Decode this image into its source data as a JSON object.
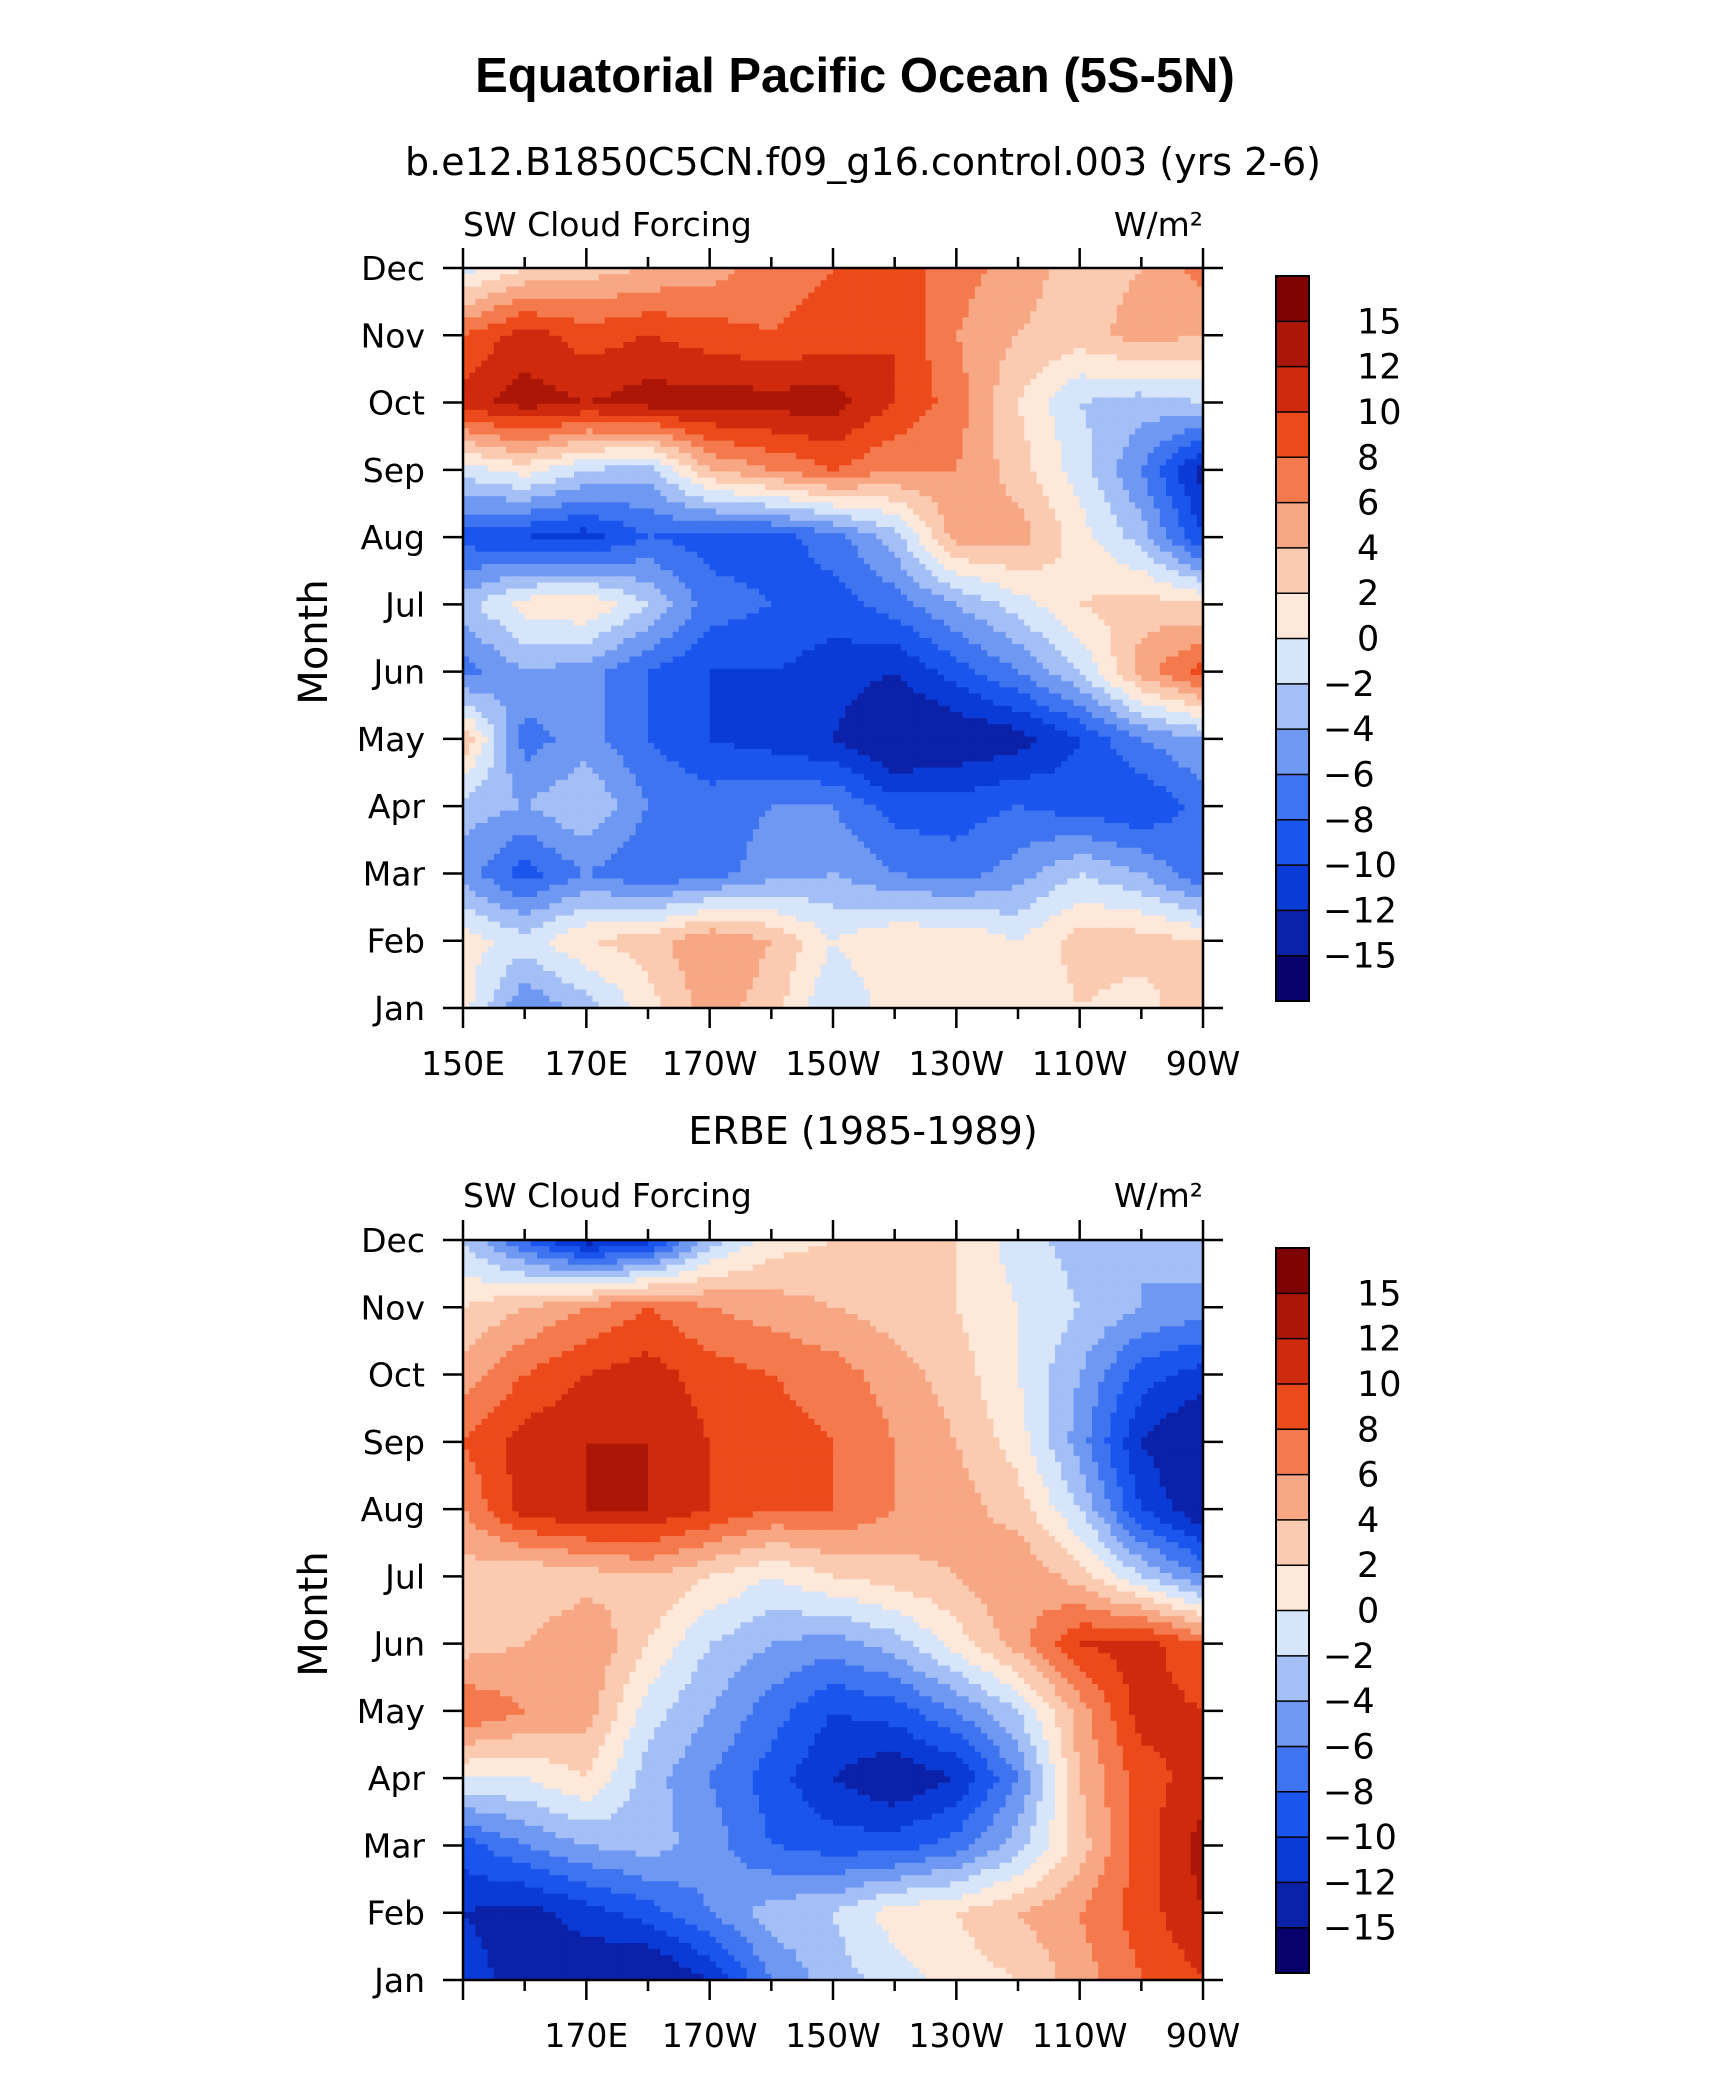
{
  "figure": {
    "title": "Equatorial Pacific Ocean (5S-5N)"
  },
  "chart_data": [
    {
      "type": "heatmap",
      "subtitle": "b.e12.B1850C5CN.f09_g16.control.003 (yrs 2-6)",
      "left_label": "SW Cloud Forcing",
      "right_label": "W/m²",
      "xlabel": "",
      "ylabel": "Month",
      "x_ticks": [
        "150E",
        "170E",
        "170W",
        "150W",
        "130W",
        "110W",
        "90W"
      ],
      "x_tick_lons": [
        150,
        170,
        190,
        210,
        230,
        250,
        270
      ],
      "xlim": [
        150,
        270
      ],
      "y_ticks": [
        "Jan",
        "Feb",
        "Mar",
        "Apr",
        "May",
        "Jun",
        "Jul",
        "Aug",
        "Sep",
        "Oct",
        "Nov",
        "Dec"
      ],
      "levels": [
        -15,
        -12,
        -10,
        -8,
        -6,
        -4,
        -2,
        0,
        2,
        4,
        6,
        8,
        10,
        12,
        15
      ],
      "level_labels": [
        "15",
        "12",
        "10",
        "8",
        "6",
        "4",
        "2",
        "0",
        "−2",
        "−4",
        "−6",
        "−8",
        "−10",
        "−12",
        "−15"
      ],
      "colors": [
        "#08006b",
        "#0a21a8",
        "#0b3bd6",
        "#1a55ee",
        "#3e74f0",
        "#6e98f2",
        "#a4bff5",
        "#d6e5fa",
        "#fde8da",
        "#fbcbb1",
        "#f8a784",
        "#f4794c",
        "#ed4a1b",
        "#cf2a0d",
        "#ab1607",
        "#7f0303"
      ],
      "lons": [
        150,
        160,
        170,
        180,
        190,
        200,
        210,
        220,
        230,
        240,
        250,
        260,
        270
      ],
      "z": [
        [
          1,
          -6,
          -3,
          1,
          5,
          3,
          -2,
          1,
          0,
          0,
          2,
          1,
          4
        ],
        [
          1,
          -1,
          2,
          3,
          6,
          4,
          0,
          2,
          2,
          0,
          3,
          3,
          2
        ],
        [
          -5,
          -9,
          -6,
          -8,
          -7,
          -5,
          -4,
          -6,
          -7,
          -5,
          -2,
          -4,
          -8
        ],
        [
          -3,
          -4,
          -2,
          -6,
          -7,
          -6,
          -6,
          -9,
          -9,
          -8,
          -9,
          -10,
          -7
        ],
        [
          4,
          -7,
          -5,
          -8,
          -10,
          -11,
          -12,
          -15,
          -14,
          -13,
          -10,
          -6,
          -4
        ],
        [
          -7,
          -4,
          -5,
          -8,
          -10,
          -10,
          -11,
          -12,
          -9,
          -6,
          -2,
          5,
          9
        ],
        [
          -3,
          1,
          2,
          -2,
          -7,
          -8,
          -9,
          -7,
          -4,
          -1,
          2,
          3,
          2
        ],
        [
          -9,
          -10,
          -11,
          -8,
          -9,
          -9,
          -7,
          -3,
          5,
          5,
          1,
          -3,
          -10
        ],
        [
          -1,
          1,
          -2,
          -3,
          4,
          6,
          8,
          6,
          6,
          3,
          -1,
          -6,
          -13
        ],
        [
          11,
          13,
          12,
          13,
          13,
          13,
          13,
          10,
          7,
          2,
          -2,
          -3,
          -2
        ],
        [
          8,
          11,
          9,
          10,
          9,
          8,
          9,
          10,
          6,
          4,
          3,
          5,
          4
        ],
        [
          -1,
          2,
          3,
          4,
          5,
          7,
          8,
          9,
          7,
          5,
          3,
          4,
          7
        ]
      ]
    },
    {
      "type": "heatmap",
      "subtitle": "ERBE (1985-1989)",
      "left_label": "SW Cloud Forcing",
      "right_label": "W/m²",
      "xlabel": "",
      "ylabel": "Month",
      "x_ticks": [
        "170E",
        "170W",
        "150W",
        "130W",
        "110W",
        "90W"
      ],
      "x_tick_lons": [
        170,
        190,
        210,
        230,
        250,
        270
      ],
      "xlim": [
        150,
        270
      ],
      "y_ticks": [
        "Jan",
        "Feb",
        "Mar",
        "Apr",
        "May",
        "Jun",
        "Jul",
        "Aug",
        "Sep",
        "Oct",
        "Nov",
        "Dec"
      ],
      "levels": [
        -15,
        -12,
        -10,
        -8,
        -6,
        -4,
        -2,
        0,
        2,
        4,
        6,
        8,
        10,
        12,
        15
      ],
      "level_labels": [
        "15",
        "12",
        "10",
        "8",
        "6",
        "4",
        "2",
        "0",
        "−2",
        "−4",
        "−6",
        "−8",
        "−10",
        "−12",
        "−15"
      ],
      "colors": [
        "#08006b",
        "#0a21a8",
        "#0b3bd6",
        "#1a55ee",
        "#3e74f0",
        "#6e98f2",
        "#a4bff5",
        "#d6e5fa",
        "#fde8da",
        "#fbcbb1",
        "#f8a784",
        "#f4794c",
        "#ed4a1b",
        "#cf2a0d",
        "#ab1607",
        "#7f0303"
      ],
      "lons": [
        150,
        160,
        170,
        180,
        190,
        200,
        210,
        220,
        230,
        240,
        250,
        260,
        270
      ],
      "z": [
        [
          -11,
          -13,
          -14,
          -15,
          -12,
          -6,
          -3,
          -1,
          1,
          2,
          5,
          8,
          10
        ],
        [
          -12,
          -13,
          -11,
          -9,
          -6,
          -3,
          -2,
          1,
          2,
          4,
          6,
          9,
          12
        ],
        [
          -9,
          -6,
          -4,
          -3,
          -5,
          -8,
          -9,
          -9,
          -7,
          -3,
          3,
          9,
          13
        ],
        [
          0,
          0,
          2,
          -3,
          -6,
          -9,
          -12,
          -14,
          -12,
          -6,
          4,
          9,
          11
        ],
        [
          8,
          6,
          5,
          -1,
          -4,
          -7,
          -10,
          -9,
          -6,
          -2,
          5,
          11,
          10
        ],
        [
          3,
          4,
          6,
          2,
          -2,
          -4,
          -5,
          -3,
          1,
          5,
          10,
          11,
          8
        ],
        [
          3,
          2,
          3,
          4,
          2,
          0,
          2,
          3,
          4,
          6,
          3,
          -2,
          -6
        ],
        [
          6,
          11,
          12,
          12,
          10,
          8,
          8,
          6,
          5,
          3,
          -2,
          -10,
          -14
        ],
        [
          8,
          11,
          12,
          12,
          10,
          9,
          8,
          6,
          4,
          1,
          -5,
          -12,
          -15
        ],
        [
          5,
          8,
          10,
          11,
          9,
          8,
          7,
          5,
          3,
          0,
          -4,
          -9,
          -11
        ],
        [
          2,
          4,
          6,
          8,
          6,
          5,
          4,
          3,
          2,
          0,
          -2,
          -4,
          -5
        ],
        [
          -2,
          -8,
          -13,
          -11,
          -3,
          1,
          2,
          3,
          2,
          -1,
          -3,
          -4,
          -2
        ]
      ]
    }
  ]
}
